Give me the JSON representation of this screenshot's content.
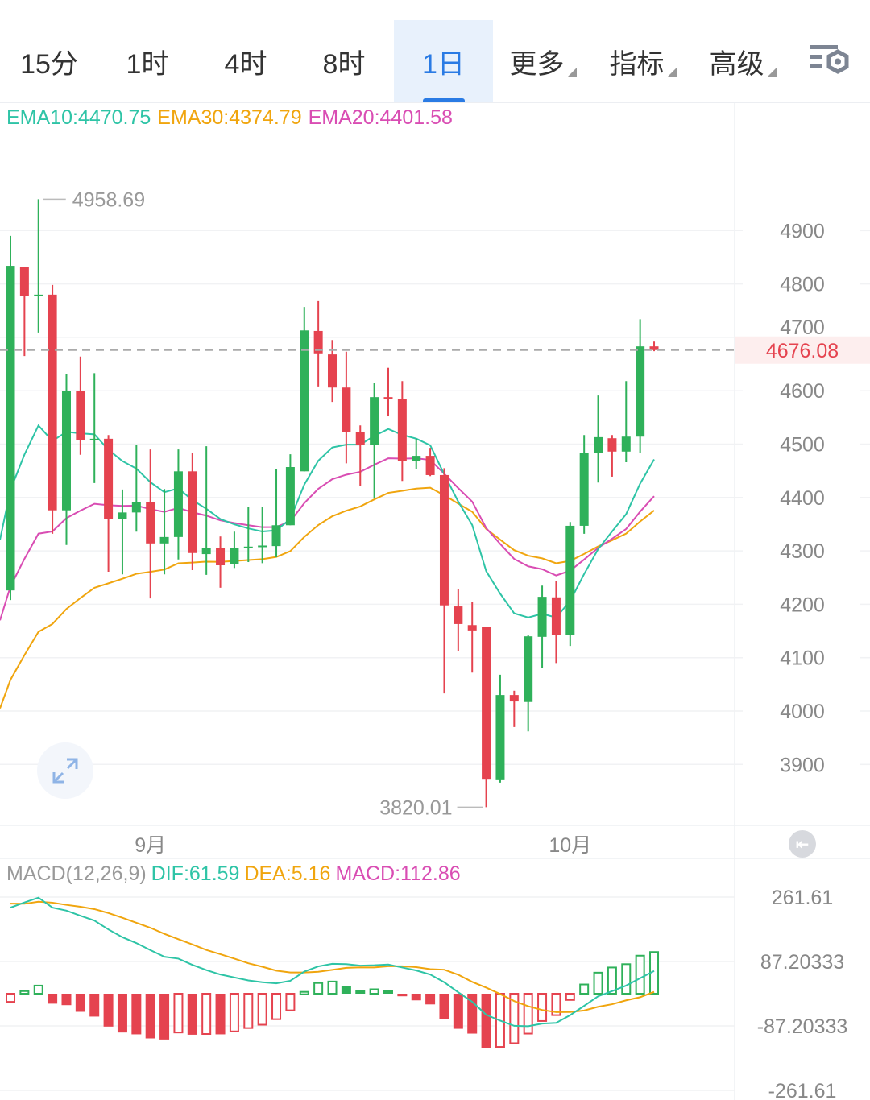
{
  "tabs": [
    {
      "label": "15分",
      "active": false
    },
    {
      "label": "1时",
      "active": false
    },
    {
      "label": "4时",
      "active": false
    },
    {
      "label": "8时",
      "active": false
    },
    {
      "label": "1日",
      "active": true
    },
    {
      "label": "更多",
      "dropdown": true
    },
    {
      "label": "指标",
      "dropdown": true
    },
    {
      "label": "高级",
      "dropdown": true
    }
  ],
  "settings_icon": "chart-settings-icon",
  "legend": {
    "ema10": "EMA10:4470.75",
    "ema30": "EMA30:4374.79",
    "ema20": "EMA20:4401.58"
  },
  "macd_legend": {
    "name": "MACD(12,26,9)",
    "dif": "DIF:61.59",
    "dea": "DEA:5.16",
    "macd": "MACD:112.86"
  },
  "colors": {
    "up": "#2fb15a",
    "down": "#e5434f",
    "ema10": "#2ec4a6",
    "ema30": "#f0a50e",
    "ema20": "#d94db3",
    "accent": "#2a7be4"
  },
  "chart_data": {
    "type": "candlestick",
    "price_axis": {
      "ticks": [
        4900,
        4800,
        4700,
        4600,
        4500,
        4400,
        4300,
        4200,
        4100,
        4000,
        3900
      ],
      "tick_labels": [
        "4900",
        "4800",
        "4700",
        "4600",
        "4500",
        "4400",
        "4300",
        "4200",
        "4100",
        "4000",
        "3900"
      ]
    },
    "x_labels": [
      {
        "label": "9月",
        "index": 10
      },
      {
        "label": "10月",
        "index": 40
      }
    ],
    "last_price": 4676.08,
    "last_price_label": "4676.08",
    "high_marker": {
      "label": "4958.69",
      "index": 2,
      "value": 4958.69
    },
    "low_marker": {
      "label": "3820.01",
      "index": 34,
      "value": 3820.01
    },
    "ohlc": [
      [
        4226,
        4890,
        4208,
        4834
      ],
      [
        4832,
        4832,
        4665,
        4778
      ],
      [
        4780,
        4958.69,
        4709,
        4780
      ],
      [
        4780,
        4798,
        4332,
        4376
      ],
      [
        4376,
        4632,
        4311,
        4599
      ],
      [
        4599,
        4664,
        4480,
        4508
      ],
      [
        4507,
        4633,
        4427,
        4510
      ],
      [
        4510,
        4517,
        4261,
        4360
      ],
      [
        4360,
        4415,
        4256,
        4372
      ],
      [
        4372,
        4498,
        4336,
        4391
      ],
      [
        4391,
        4490,
        4211,
        4314
      ],
      [
        4314,
        4416,
        4256,
        4326
      ],
      [
        4326,
        4490,
        4284,
        4449
      ],
      [
        4449,
        4483,
        4264,
        4296
      ],
      [
        4294,
        4496,
        4255,
        4306
      ],
      [
        4306,
        4327,
        4231,
        4273
      ],
      [
        4276,
        4336,
        4268,
        4305
      ],
      [
        4306,
        4383,
        4279,
        4308
      ],
      [
        4308,
        4382,
        4277,
        4310
      ],
      [
        4309,
        4454,
        4288,
        4348
      ],
      [
        4348,
        4481,
        4348,
        4457
      ],
      [
        4449,
        4757,
        4449,
        4713
      ],
      [
        4712,
        4768,
        4608,
        4670
      ],
      [
        4668,
        4695,
        4579,
        4606
      ],
      [
        4606,
        4673,
        4464,
        4523
      ],
      [
        4522,
        4535,
        4421,
        4499
      ],
      [
        4499,
        4615,
        4398,
        4588
      ],
      [
        4588,
        4643,
        4552,
        4587
      ],
      [
        4585,
        4618,
        4431,
        4468
      ],
      [
        4468,
        4510,
        4454,
        4478
      ],
      [
        4478,
        4493,
        4440,
        4442
      ],
      [
        4442,
        4455,
        4033,
        4198
      ],
      [
        4196,
        4228,
        4113,
        4163
      ],
      [
        4161,
        4205,
        4072,
        4151
      ],
      [
        4158,
        4158,
        3820.01,
        3873
      ],
      [
        3872,
        4068,
        3866,
        4030
      ],
      [
        4030,
        4038,
        3970,
        4018
      ],
      [
        4017,
        4142,
        3962,
        4140
      ],
      [
        4139,
        4235,
        4080,
        4214
      ],
      [
        4213,
        4244,
        4090,
        4143
      ],
      [
        4143,
        4354,
        4122,
        4347
      ],
      [
        4347,
        4517,
        4332,
        4483
      ],
      [
        4483,
        4591,
        4428,
        4513
      ],
      [
        4511,
        4517,
        4439,
        4486
      ],
      [
        4486,
        4618,
        4466,
        4514
      ],
      [
        4514,
        4734,
        4484,
        4683
      ],
      [
        4683,
        4692,
        4674,
        4676.08
      ]
    ],
    "ema_seed": {
      "ema10": 4321,
      "ema20": 4170,
      "ema30": 4005
    },
    "macd": {
      "axis_labels": [
        "261.61",
        "87.20333",
        "-87.20333",
        "-261.61"
      ],
      "axis_values": [
        261.61,
        87.20333,
        -87.20333,
        -261.61
      ],
      "dif": [
        233,
        247,
        260,
        233,
        225,
        211,
        198,
        174,
        153,
        137,
        118,
        100,
        95,
        78,
        64,
        52,
        44,
        36,
        31,
        28,
        35,
        60,
        74,
        81,
        80,
        76,
        77,
        79,
        71,
        63,
        52,
        31,
        4,
        -22,
        -57,
        -73,
        -87,
        -88,
        -81,
        -79,
        -58,
        -33,
        -7,
        7,
        22,
        42,
        61.59
      ],
      "hist": [
        -22,
        7,
        22,
        -27,
        -31,
        -49,
        -62,
        -89,
        -105,
        -110,
        -121,
        -124,
        -105,
        -111,
        -109,
        -110,
        -102,
        -93,
        -84,
        -69,
        -45,
        5,
        29,
        33,
        20,
        9,
        12,
        9,
        -7,
        -18,
        -29,
        -68,
        -95,
        -108,
        -147,
        -144,
        -134,
        -108,
        -74,
        -58,
        -17,
        25,
        57,
        71,
        80,
        103,
        112.86
      ]
    }
  }
}
